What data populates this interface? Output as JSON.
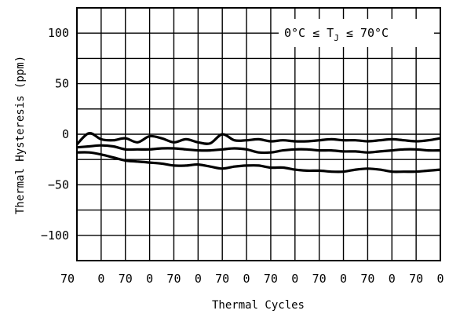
{
  "chart_data": {
    "type": "line",
    "title": "",
    "xlabel": "Thermal Cycles",
    "ylabel": "Thermal Hysteresis (ppm)",
    "xtick_labels": [
      "70",
      "0",
      "70",
      "0",
      "70",
      "0",
      "70",
      "0",
      "70",
      "0",
      "70",
      "0",
      "70",
      "0",
      "70",
      "0"
    ],
    "yticks": [
      100,
      50,
      0,
      -50,
      -100
    ],
    "ytick_labels": [
      "100",
      "50",
      "0",
      "−50",
      "−100"
    ],
    "ylim": [
      -125,
      125
    ],
    "xlim": [
      0,
      15
    ],
    "grid": true,
    "annotation": {
      "prefix": "0°C ≤ T",
      "subscript": "J",
      "suffix": " ≤ 70°C"
    },
    "line_color": "#000000",
    "series": [
      {
        "x": [
          0,
          0.5,
          1,
          1.5,
          2,
          2.5,
          3,
          3.5,
          4,
          4.5,
          5,
          5.5,
          6,
          6.5,
          7,
          7.5,
          8,
          8.5,
          9,
          9.5,
          10,
          10.5,
          11,
          11.5,
          12,
          12.5,
          13,
          13.5,
          14,
          14.5,
          15
        ],
        "values": [
          -10,
          1,
          -5,
          -6,
          -4,
          -8,
          -2,
          -4,
          -8,
          -5,
          -8,
          -9,
          0,
          -6,
          -6,
          -5,
          -7,
          -6,
          -7,
          -7,
          -6,
          -5,
          -6,
          -6,
          -7,
          -6,
          -5,
          -6,
          -7,
          -6,
          -4
        ]
      },
      {
        "x": [
          0,
          0.5,
          1,
          1.5,
          2,
          2.5,
          3,
          3.5,
          4,
          4.5,
          5,
          5.5,
          6,
          6.5,
          7,
          7.5,
          8,
          8.5,
          9,
          9.5,
          10,
          10.5,
          11,
          11.5,
          12,
          12.5,
          13,
          13.5,
          14,
          14.5,
          15
        ],
        "values": [
          -13,
          -12,
          -11,
          -12,
          -15,
          -15,
          -15,
          -14,
          -14,
          -15,
          -16,
          -16,
          -15,
          -14,
          -15,
          -18,
          -18,
          -16,
          -15,
          -15,
          -16,
          -16,
          -17,
          -17,
          -18,
          -17,
          -16,
          -15,
          -15,
          -16,
          -16
        ]
      },
      {
        "x": [
          0,
          0.5,
          1,
          1.5,
          2,
          2.5,
          3,
          3.5,
          4,
          4.5,
          5,
          5.5,
          6,
          6.5,
          7,
          7.5,
          8,
          8.5,
          9,
          9.5,
          10,
          10.5,
          11,
          11.5,
          12,
          12.5,
          13,
          13.5,
          14,
          14.5,
          15
        ],
        "values": [
          -18,
          -18,
          -20,
          -23,
          -26,
          -27,
          -28,
          -29,
          -31,
          -31,
          -30,
          -32,
          -34,
          -32,
          -31,
          -31,
          -33,
          -33,
          -35,
          -36,
          -36,
          -37,
          -37,
          -35,
          -34,
          -35,
          -37,
          -37,
          -37,
          -36,
          -35
        ]
      }
    ]
  }
}
